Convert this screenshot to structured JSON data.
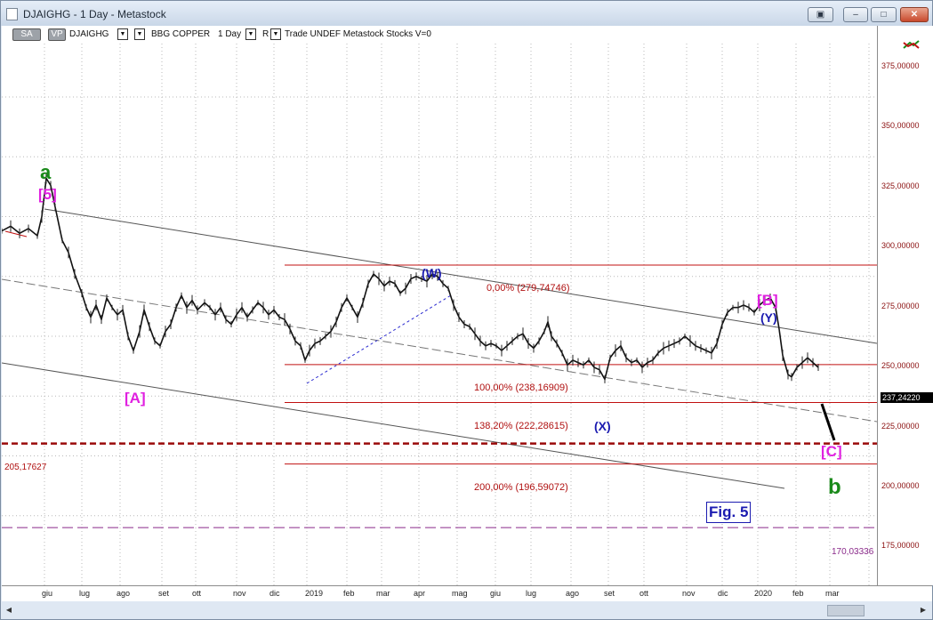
{
  "window": {
    "title": "DJAIGHG - 1 Day - Metastock"
  },
  "toolbar": {
    "sa": "SA",
    "vp": "VP",
    "symbol": "DJAIGHG",
    "name": "BBG COPPER",
    "period": "1 Day",
    "r": "R",
    "rest": "Trade  UNDEF  Metastock  Stocks  V=0"
  },
  "price_axis": {
    "labels": [
      "375,00000",
      "350,00000",
      "325,00000",
      "300,00000",
      "275,00000",
      "250,00000",
      "225,00000",
      "200,00000",
      "175,00000"
    ],
    "last_price": "237,24220"
  },
  "time_axis": {
    "labels": [
      "giu",
      "lug",
      "ago",
      "set",
      "ott",
      "nov",
      "dic",
      "2019",
      "feb",
      "mar",
      "apr",
      "mag",
      "giu",
      "lug",
      "ago",
      "set",
      "ott",
      "nov",
      "dic",
      "2020",
      "feb",
      "mar"
    ]
  },
  "waves": {
    "a": "a",
    "a5": "[5]",
    "A": "[A]",
    "W": "(W)",
    "X": "(X)",
    "B": "[B]",
    "Y": "(Y)",
    "C": "[C]",
    "b": "b"
  },
  "fib_levels": {
    "f0": "0,00% (279,74746)",
    "f100": "100,00% (238,16909)",
    "f138": "138,20% (222,28615)",
    "f200": "200,00% (196,59072)"
  },
  "levels": {
    "support": "205,17627",
    "low": "170,03336"
  },
  "figure_label": "Fig. 5",
  "colors": {
    "wave_magenta": "#e020e0",
    "wave_blue": "#1b1bb0",
    "wave_green": "#1a8a1a",
    "fib_red": "#b01010"
  }
}
